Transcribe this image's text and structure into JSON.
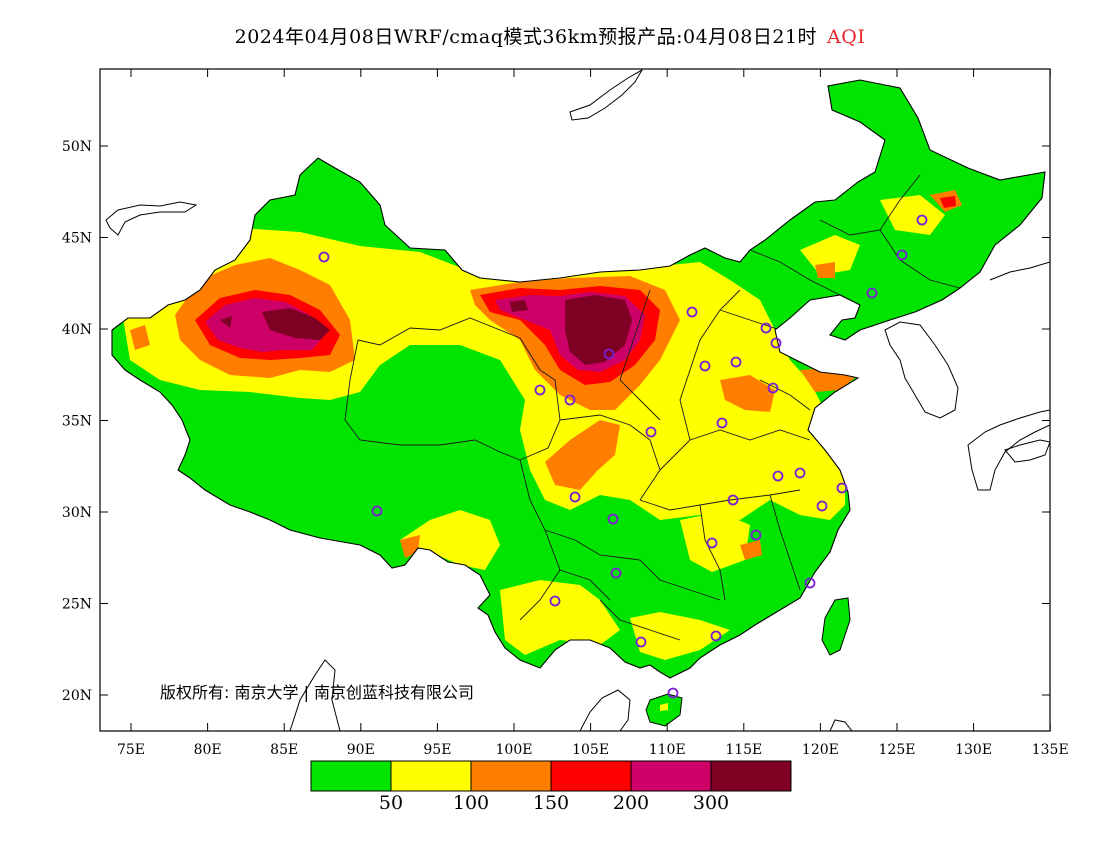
{
  "title": {
    "text": "2024年04月08日WRF/cmaq模式36km预报产品:04月08日21时",
    "variable": "AQI",
    "variable_color": "#e8262b"
  },
  "axes": {
    "x_ticks": [
      "75E",
      "80E",
      "85E",
      "90E",
      "95E",
      "100E",
      "105E",
      "110E",
      "115E",
      "120E",
      "125E",
      "130E",
      "135E"
    ],
    "y_ticks": [
      "20N",
      "25N",
      "30N",
      "35N",
      "40N",
      "45N",
      "50N"
    ]
  },
  "legend": {
    "colors": [
      "#00e400",
      "#ffff00",
      "#ff7e00",
      "#ff0000",
      "#cc0066",
      "#7e0023"
    ],
    "labels": [
      "50",
      "100",
      "150",
      "200",
      "300"
    ]
  },
  "copyright": "版权所有: 南京大学 | 南京创蓝科技有限公司",
  "colors": {
    "good": "#00e400",
    "moderate": "#ffff00",
    "usg": "#ff7e00",
    "unhealthy": "#ff0000",
    "very_unhealthy": "#cc0066",
    "hazardous": "#7e0023",
    "station_marker": "#7a1fd6"
  }
}
